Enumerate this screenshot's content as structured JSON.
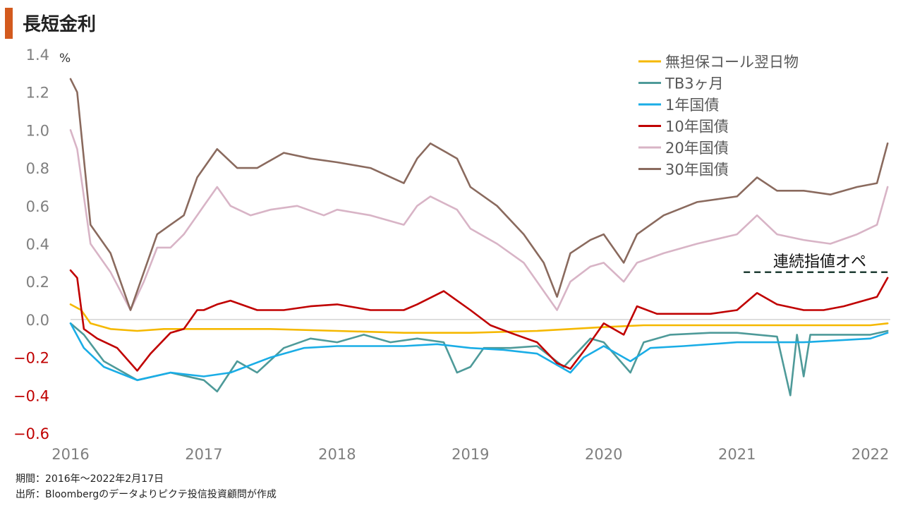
{
  "title": "長短金利",
  "unit_label": "%",
  "footnotes": {
    "period": "期間：2016年～2022年2月17日",
    "source": "出所：Bloombergのデータよりピクテ投信投資顧問が作成"
  },
  "annotation": "連続指値オペ",
  "colors": {
    "accent": "#d35a1e",
    "axis_text": "#7f7f7f",
    "negative_tick": "#c00000",
    "zero_line": "#bfbfbf",
    "annotation_line": "#1f3d33"
  },
  "chart_data": {
    "type": "line",
    "title": "長短金利",
    "ylabel": "%",
    "xlabel": "",
    "ylim": [
      -0.6,
      1.4
    ],
    "yticks": [
      1.4,
      1.2,
      1.0,
      0.8,
      0.6,
      0.4,
      0.2,
      0.0,
      -0.2,
      -0.4,
      -0.6
    ],
    "ytick_labels": [
      "1.4",
      "1.2",
      "1.0",
      "0.8",
      "0.6",
      "0.4",
      "0.2",
      "0.0",
      "−0.2",
      "−0.4",
      "−0.6"
    ],
    "xlim": [
      2016.0,
      2022.15
    ],
    "xticks": [
      2016,
      2017,
      2018,
      2019,
      2020,
      2021,
      2022
    ],
    "xtick_labels": [
      "2016",
      "2017",
      "2018",
      "2019",
      "2020",
      "2021",
      "2022"
    ],
    "legend_position": "top-right",
    "grid": false,
    "annotations": [
      {
        "text": "連続指値オペ",
        "y": 0.25,
        "x_start": 2021.05,
        "x_end": 2022.15,
        "style": "dashed"
      }
    ],
    "series": [
      {
        "name": "無担保コール翌日物",
        "color": "#f5b800",
        "points": [
          [
            2016.0,
            0.08
          ],
          [
            2016.08,
            0.05
          ],
          [
            2016.15,
            -0.02
          ],
          [
            2016.3,
            -0.05
          ],
          [
            2016.5,
            -0.06
          ],
          [
            2016.7,
            -0.05
          ],
          [
            2017.0,
            -0.05
          ],
          [
            2017.5,
            -0.05
          ],
          [
            2018.0,
            -0.06
          ],
          [
            2018.5,
            -0.07
          ],
          [
            2019.0,
            -0.07
          ],
          [
            2019.5,
            -0.06
          ],
          [
            2019.75,
            -0.05
          ],
          [
            2020.0,
            -0.04
          ],
          [
            2020.3,
            -0.03
          ],
          [
            2020.6,
            -0.03
          ],
          [
            2021.0,
            -0.03
          ],
          [
            2021.5,
            -0.03
          ],
          [
            2022.0,
            -0.03
          ],
          [
            2022.13,
            -0.02
          ]
        ]
      },
      {
        "name": "TB3ヶ月",
        "color": "#4e9a99",
        "points": [
          [
            2016.0,
            -0.02
          ],
          [
            2016.1,
            -0.08
          ],
          [
            2016.25,
            -0.22
          ],
          [
            2016.5,
            -0.32
          ],
          [
            2016.75,
            -0.28
          ],
          [
            2017.0,
            -0.32
          ],
          [
            2017.1,
            -0.38
          ],
          [
            2017.25,
            -0.22
          ],
          [
            2017.4,
            -0.28
          ],
          [
            2017.6,
            -0.15
          ],
          [
            2017.8,
            -0.1
          ],
          [
            2018.0,
            -0.12
          ],
          [
            2018.2,
            -0.08
          ],
          [
            2018.4,
            -0.12
          ],
          [
            2018.6,
            -0.1
          ],
          [
            2018.8,
            -0.12
          ],
          [
            2018.9,
            -0.28
          ],
          [
            2019.0,
            -0.25
          ],
          [
            2019.1,
            -0.15
          ],
          [
            2019.3,
            -0.15
          ],
          [
            2019.5,
            -0.14
          ],
          [
            2019.7,
            -0.25
          ],
          [
            2019.9,
            -0.1
          ],
          [
            2020.0,
            -0.12
          ],
          [
            2020.2,
            -0.28
          ],
          [
            2020.3,
            -0.12
          ],
          [
            2020.5,
            -0.08
          ],
          [
            2020.8,
            -0.07
          ],
          [
            2021.0,
            -0.07
          ],
          [
            2021.3,
            -0.09
          ],
          [
            2021.4,
            -0.4
          ],
          [
            2021.45,
            -0.08
          ],
          [
            2021.5,
            -0.3
          ],
          [
            2021.55,
            -0.08
          ],
          [
            2021.8,
            -0.08
          ],
          [
            2022.0,
            -0.08
          ],
          [
            2022.13,
            -0.06
          ]
        ]
      },
      {
        "name": "1年国債",
        "color": "#1aade6",
        "points": [
          [
            2016.0,
            -0.02
          ],
          [
            2016.1,
            -0.15
          ],
          [
            2016.25,
            -0.25
          ],
          [
            2016.5,
            -0.32
          ],
          [
            2016.75,
            -0.28
          ],
          [
            2017.0,
            -0.3
          ],
          [
            2017.2,
            -0.28
          ],
          [
            2017.5,
            -0.2
          ],
          [
            2017.75,
            -0.15
          ],
          [
            2018.0,
            -0.14
          ],
          [
            2018.25,
            -0.14
          ],
          [
            2018.5,
            -0.14
          ],
          [
            2018.75,
            -0.13
          ],
          [
            2019.0,
            -0.15
          ],
          [
            2019.25,
            -0.16
          ],
          [
            2019.5,
            -0.18
          ],
          [
            2019.75,
            -0.28
          ],
          [
            2019.85,
            -0.2
          ],
          [
            2020.0,
            -0.14
          ],
          [
            2020.2,
            -0.22
          ],
          [
            2020.35,
            -0.15
          ],
          [
            2020.6,
            -0.14
          ],
          [
            2021.0,
            -0.12
          ],
          [
            2021.5,
            -0.12
          ],
          [
            2022.0,
            -0.1
          ],
          [
            2022.13,
            -0.07
          ]
        ]
      },
      {
        "name": "10年国債",
        "color": "#c00000",
        "points": [
          [
            2016.0,
            0.26
          ],
          [
            2016.05,
            0.22
          ],
          [
            2016.1,
            -0.05
          ],
          [
            2016.2,
            -0.1
          ],
          [
            2016.35,
            -0.15
          ],
          [
            2016.5,
            -0.27
          ],
          [
            2016.6,
            -0.18
          ],
          [
            2016.75,
            -0.07
          ],
          [
            2016.85,
            -0.05
          ],
          [
            2016.95,
            0.05
          ],
          [
            2017.0,
            0.05
          ],
          [
            2017.1,
            0.08
          ],
          [
            2017.2,
            0.1
          ],
          [
            2017.4,
            0.05
          ],
          [
            2017.6,
            0.05
          ],
          [
            2017.8,
            0.07
          ],
          [
            2018.0,
            0.08
          ],
          [
            2018.25,
            0.05
          ],
          [
            2018.5,
            0.05
          ],
          [
            2018.6,
            0.08
          ],
          [
            2018.8,
            0.15
          ],
          [
            2019.0,
            0.05
          ],
          [
            2019.15,
            -0.03
          ],
          [
            2019.3,
            -0.07
          ],
          [
            2019.5,
            -0.12
          ],
          [
            2019.65,
            -0.23
          ],
          [
            2019.75,
            -0.26
          ],
          [
            2019.9,
            -0.12
          ],
          [
            2020.0,
            -0.02
          ],
          [
            2020.15,
            -0.08
          ],
          [
            2020.25,
            0.07
          ],
          [
            2020.4,
            0.03
          ],
          [
            2020.6,
            0.03
          ],
          [
            2020.8,
            0.03
          ],
          [
            2021.0,
            0.05
          ],
          [
            2021.15,
            0.14
          ],
          [
            2021.3,
            0.08
          ],
          [
            2021.5,
            0.05
          ],
          [
            2021.65,
            0.05
          ],
          [
            2021.8,
            0.07
          ],
          [
            2021.95,
            0.1
          ],
          [
            2022.05,
            0.12
          ],
          [
            2022.13,
            0.22
          ]
        ]
      },
      {
        "name": "20年国債",
        "color": "#d8b4c6",
        "points": [
          [
            2016.0,
            1.0
          ],
          [
            2016.05,
            0.9
          ],
          [
            2016.15,
            0.4
          ],
          [
            2016.3,
            0.25
          ],
          [
            2016.45,
            0.05
          ],
          [
            2016.55,
            0.2
          ],
          [
            2016.65,
            0.38
          ],
          [
            2016.75,
            0.38
          ],
          [
            2016.85,
            0.45
          ],
          [
            2016.95,
            0.55
          ],
          [
            2017.0,
            0.6
          ],
          [
            2017.1,
            0.7
          ],
          [
            2017.2,
            0.6
          ],
          [
            2017.35,
            0.55
          ],
          [
            2017.5,
            0.58
          ],
          [
            2017.7,
            0.6
          ],
          [
            2017.9,
            0.55
          ],
          [
            2018.0,
            0.58
          ],
          [
            2018.25,
            0.55
          ],
          [
            2018.5,
            0.5
          ],
          [
            2018.6,
            0.6
          ],
          [
            2018.7,
            0.65
          ],
          [
            2018.9,
            0.58
          ],
          [
            2019.0,
            0.48
          ],
          [
            2019.2,
            0.4
          ],
          [
            2019.4,
            0.3
          ],
          [
            2019.55,
            0.15
          ],
          [
            2019.65,
            0.05
          ],
          [
            2019.75,
            0.2
          ],
          [
            2019.9,
            0.28
          ],
          [
            2020.0,
            0.3
          ],
          [
            2020.15,
            0.2
          ],
          [
            2020.25,
            0.3
          ],
          [
            2020.45,
            0.35
          ],
          [
            2020.7,
            0.4
          ],
          [
            2021.0,
            0.45
          ],
          [
            2021.15,
            0.55
          ],
          [
            2021.3,
            0.45
          ],
          [
            2021.5,
            0.42
          ],
          [
            2021.7,
            0.4
          ],
          [
            2021.9,
            0.45
          ],
          [
            2022.05,
            0.5
          ],
          [
            2022.13,
            0.7
          ]
        ]
      },
      {
        "name": "30年国債",
        "color": "#8a6a5e",
        "points": [
          [
            2016.0,
            1.27
          ],
          [
            2016.05,
            1.2
          ],
          [
            2016.15,
            0.5
          ],
          [
            2016.3,
            0.35
          ],
          [
            2016.45,
            0.05
          ],
          [
            2016.55,
            0.25
          ],
          [
            2016.65,
            0.45
          ],
          [
            2016.75,
            0.5
          ],
          [
            2016.85,
            0.55
          ],
          [
            2016.95,
            0.75
          ],
          [
            2017.0,
            0.8
          ],
          [
            2017.1,
            0.9
          ],
          [
            2017.25,
            0.8
          ],
          [
            2017.4,
            0.8
          ],
          [
            2017.6,
            0.88
          ],
          [
            2017.8,
            0.85
          ],
          [
            2018.0,
            0.83
          ],
          [
            2018.25,
            0.8
          ],
          [
            2018.5,
            0.72
          ],
          [
            2018.6,
            0.85
          ],
          [
            2018.7,
            0.93
          ],
          [
            2018.9,
            0.85
          ],
          [
            2019.0,
            0.7
          ],
          [
            2019.2,
            0.6
          ],
          [
            2019.4,
            0.45
          ],
          [
            2019.55,
            0.3
          ],
          [
            2019.65,
            0.12
          ],
          [
            2019.75,
            0.35
          ],
          [
            2019.9,
            0.42
          ],
          [
            2020.0,
            0.45
          ],
          [
            2020.15,
            0.3
          ],
          [
            2020.25,
            0.45
          ],
          [
            2020.45,
            0.55
          ],
          [
            2020.7,
            0.62
          ],
          [
            2021.0,
            0.65
          ],
          [
            2021.15,
            0.75
          ],
          [
            2021.3,
            0.68
          ],
          [
            2021.5,
            0.68
          ],
          [
            2021.7,
            0.66
          ],
          [
            2021.9,
            0.7
          ],
          [
            2022.05,
            0.72
          ],
          [
            2022.13,
            0.93
          ]
        ]
      }
    ]
  }
}
